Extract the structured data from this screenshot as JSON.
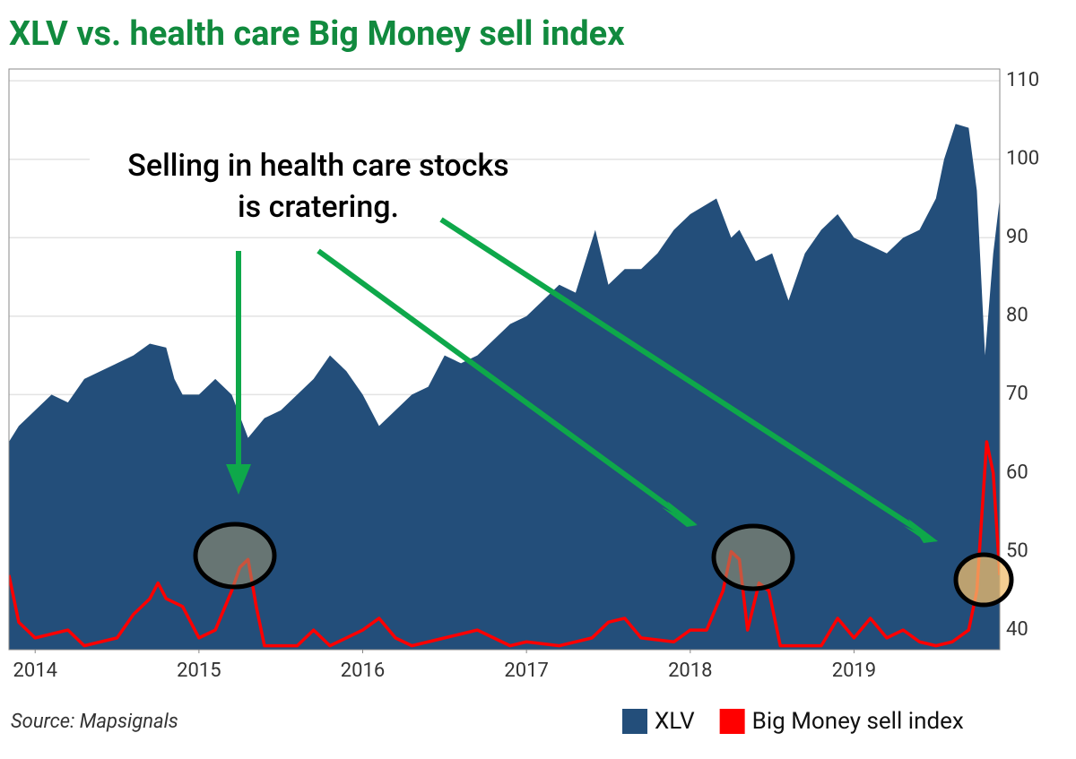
{
  "chart_data": {
    "type": "area_line",
    "title": "XLV vs. health care Big Money sell index",
    "source": "Source: Mapsignals",
    "annotation": [
      "Selling in health care stocks",
      "is cratering."
    ],
    "xlim": [
      2013.84,
      2019.89
    ],
    "xticks": [
      2014,
      2015,
      2016,
      2017,
      2018,
      2019
    ],
    "ylim": [
      37.5,
      111.5
    ],
    "yticks": [
      40,
      50,
      60,
      70,
      80,
      90,
      100,
      110
    ],
    "grid": true,
    "series": [
      {
        "name": "XLV",
        "color": "#234e7a",
        "kind": "area",
        "x": [
          2013.84,
          2013.9,
          2014.0,
          2014.1,
          2014.2,
          2014.3,
          2014.4,
          2014.5,
          2014.6,
          2014.7,
          2014.8,
          2014.85,
          2014.9,
          2015.0,
          2015.1,
          2015.2,
          2015.3,
          2015.4,
          2015.5,
          2015.6,
          2015.7,
          2015.8,
          2015.9,
          2016.0,
          2016.1,
          2016.2,
          2016.3,
          2016.4,
          2016.5,
          2016.6,
          2016.7,
          2016.8,
          2016.9,
          2017.0,
          2017.1,
          2017.2,
          2017.3,
          2017.42,
          2017.5,
          2017.6,
          2017.7,
          2017.8,
          2017.9,
          2018.0,
          2018.16,
          2018.25,
          2018.3,
          2018.4,
          2018.5,
          2018.6,
          2018.7,
          2018.8,
          2018.9,
          2019.0,
          2019.1,
          2019.2,
          2019.3,
          2019.4,
          2019.5,
          2019.55,
          2019.62,
          2019.7,
          2019.75,
          2019.8,
          2019.85,
          2019.89
        ],
        "values": [
          64,
          66,
          68,
          70,
          69,
          72,
          73,
          74,
          75,
          76.5,
          76,
          72,
          70,
          70,
          72,
          70,
          64.5,
          67,
          68,
          70,
          72,
          75,
          73,
          70,
          66,
          68,
          70,
          71,
          75,
          74,
          75,
          77,
          79,
          80,
          82,
          84,
          83,
          91,
          84,
          86,
          86,
          88,
          91,
          93,
          95,
          90,
          91,
          87,
          88,
          82,
          88,
          91,
          93,
          90,
          89,
          88,
          90,
          91,
          95,
          100,
          104.5,
          104,
          96,
          75,
          88,
          95
        ]
      },
      {
        "name": "Big Money sell index",
        "color": "#ff0000",
        "kind": "line",
        "x": [
          2013.84,
          2013.9,
          2014.0,
          2014.2,
          2014.3,
          2014.5,
          2014.6,
          2014.7,
          2014.75,
          2014.8,
          2014.9,
          2015.0,
          2015.1,
          2015.2,
          2015.25,
          2015.3,
          2015.35,
          2015.4,
          2015.6,
          2015.7,
          2015.8,
          2016.0,
          2016.1,
          2016.2,
          2016.3,
          2016.5,
          2016.6,
          2016.7,
          2016.8,
          2016.9,
          2017.0,
          2017.2,
          2017.4,
          2017.5,
          2017.6,
          2017.7,
          2017.9,
          2018.0,
          2018.1,
          2018.2,
          2018.25,
          2018.3,
          2018.35,
          2018.42,
          2018.48,
          2018.55,
          2018.7,
          2018.8,
          2018.9,
          2019.0,
          2019.1,
          2019.2,
          2019.3,
          2019.4,
          2019.5,
          2019.6,
          2019.7,
          2019.75,
          2019.81,
          2019.85,
          2019.89
        ],
        "values": [
          47,
          41,
          39,
          40,
          38,
          39,
          42,
          44,
          46,
          44,
          43,
          39,
          40,
          45,
          48,
          49,
          43,
          38,
          38,
          40,
          38,
          40,
          41.5,
          39,
          38,
          39,
          39.5,
          40,
          39,
          38,
          38.5,
          38,
          39,
          41,
          41.5,
          39,
          38.5,
          40,
          40,
          45,
          50,
          49,
          40,
          46,
          45,
          38,
          38,
          38,
          41.5,
          39,
          41.5,
          39,
          40,
          38.5,
          38,
          38.5,
          40,
          45,
          64,
          60,
          47
        ]
      }
    ]
  }
}
